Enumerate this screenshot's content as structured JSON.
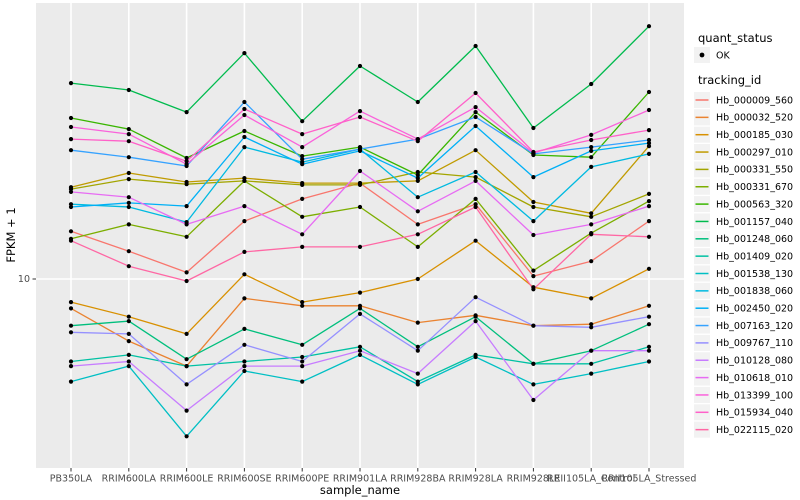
{
  "figure": {
    "panel_background": "#EBEBEB",
    "grid_color": "#FFFFFF",
    "tick_label_color": "#4D4D4D",
    "axis_title_color": "#000000",
    "legend_key_background": "#F2F2F2"
  },
  "chart_data": {
    "type": "line",
    "title": "",
    "xlabel": "sample_name",
    "ylabel": "FPKM + 1",
    "y_scale": "log10",
    "ylim_log10": [
      0.16,
      2.227
    ],
    "y_ticks": [
      {
        "value": 10,
        "label": "10"
      }
    ],
    "grid": "major",
    "point_color": "#000000",
    "categories": [
      "PB350LA",
      "RRIM600LA",
      "RRIM600LE",
      "RRIM600SE",
      "RRIM600PE",
      "RRIM901LA",
      "RRIM928BA",
      "RRIM928LA",
      "RRIM928LE",
      "RRII105LA_Control",
      "RRII105LA_Stressed"
    ],
    "legend": {
      "position": "right",
      "shape_title": "quant_status",
      "shape_items": [
        {
          "label": "OK",
          "marker": "point"
        }
      ],
      "color_title": "tracking_id"
    },
    "series": [
      {
        "name": "Hb_000009_560",
        "color": "#F8766D",
        "values": [
          16.3,
          13.3,
          10.7,
          18.1,
          22.7,
          26.7,
          17.5,
          21.5,
          10.3,
          12.0,
          18.1
        ]
      },
      {
        "name": "Hb_000032_520",
        "color": "#EA8331",
        "values": [
          7.4,
          5.3,
          4.1,
          8.2,
          7.6,
          7.6,
          6.4,
          6.9,
          6.2,
          6.3,
          7.6
        ]
      },
      {
        "name": "Hb_000185_030",
        "color": "#D89000",
        "values": [
          7.9,
          6.8,
          5.7,
          10.5,
          7.9,
          8.7,
          10.0,
          14.8,
          9.2,
          8.2,
          11.1
        ]
      },
      {
        "name": "Hb_000297_010",
        "color": "#C09B00",
        "values": [
          25.6,
          29.6,
          27.0,
          28.1,
          26.7,
          26.7,
          27.3,
          37.4,
          22.0,
          19.6,
          39.0
        ]
      },
      {
        "name": "Hb_000331_550",
        "color": "#A3A500",
        "values": [
          25.1,
          27.8,
          26.4,
          27.3,
          26.2,
          26.2,
          29.9,
          28.4,
          20.9,
          18.9,
          23.9
        ]
      },
      {
        "name": "Hb_000331_670",
        "color": "#7CAE00",
        "values": [
          15.1,
          17.5,
          15.4,
          27.3,
          18.9,
          20.9,
          13.9,
          22.7,
          10.9,
          16.0,
          22.2
        ]
      },
      {
        "name": "Hb_000563_320",
        "color": "#39B600",
        "values": [
          52.0,
          46.4,
          34.5,
          45.5,
          35.2,
          38.6,
          29.0,
          55.2,
          35.6,
          34.8,
          67.8
        ]
      },
      {
        "name": "Hb_001157_040",
        "color": "#00BB4E",
        "values": [
          74.3,
          69.2,
          55.2,
          101.0,
          50.3,
          88.5,
          61.2,
          108.6,
          46.9,
          73.6,
          133.0
        ]
      },
      {
        "name": "Hb_001248_060",
        "color": "#00BF7D",
        "values": [
          6.2,
          6.5,
          4.4,
          6.0,
          5.1,
          7.4,
          5.0,
          6.8,
          4.2,
          4.8,
          6.3
        ]
      },
      {
        "name": "Hb_001409_020",
        "color": "#00C1A3",
        "values": [
          4.3,
          4.6,
          4.1,
          4.3,
          4.5,
          5.0,
          3.5,
          4.6,
          4.2,
          4.2,
          5.0
        ]
      },
      {
        "name": "Hb_001538_130",
        "color": "#00BFC4",
        "values": [
          3.5,
          4.1,
          2.0,
          3.9,
          3.5,
          4.6,
          3.4,
          4.5,
          3.4,
          3.8,
          4.3
        ]
      },
      {
        "name": "Hb_001838_060",
        "color": "#00BAE0",
        "values": [
          21.5,
          20.9,
          17.9,
          38.6,
          33.1,
          37.8,
          23.1,
          29.9,
          18.1,
          31.5,
          36.0
        ]
      },
      {
        "name": "Hb_002450_020",
        "color": "#00B0F6",
        "values": [
          20.9,
          21.8,
          21.1,
          42.8,
          32.4,
          37.1,
          28.1,
          47.9,
          28.4,
          37.1,
          40.2
        ]
      },
      {
        "name": "Hb_007163_120",
        "color": "#35A2FF",
        "values": [
          37.4,
          34.8,
          31.8,
          61.2,
          34.1,
          37.8,
          41.9,
          52.5,
          36.0,
          38.6,
          41.5
        ]
      },
      {
        "name": "Hb_009767_110",
        "color": "#9590FF",
        "values": [
          5.8,
          5.7,
          3.4,
          5.1,
          4.3,
          7.0,
          4.8,
          8.3,
          6.2,
          6.1,
          6.8
        ]
      },
      {
        "name": "Hb_010128_080",
        "color": "#C77CFF",
        "values": [
          4.1,
          4.3,
          2.6,
          4.1,
          4.1,
          4.8,
          3.8,
          6.5,
          2.9,
          4.8,
          4.8
        ]
      },
      {
        "name": "Hb_010618_010",
        "color": "#E76BF3",
        "values": [
          24.4,
          23.1,
          17.5,
          21.1,
          15.8,
          30.2,
          20.0,
          27.3,
          15.7,
          17.5,
          21.1
        ]
      },
      {
        "name": "Hb_013399_100",
        "color": "#FA62DB",
        "values": [
          47.4,
          44.1,
          32.4,
          53.6,
          38.6,
          55.8,
          41.9,
          58.1,
          36.3,
          43.7,
          56.4
        ]
      },
      {
        "name": "Hb_015934_040",
        "color": "#FF61C9",
        "values": [
          41.9,
          41.0,
          33.4,
          57.0,
          44.1,
          52.5,
          41.0,
          67.1,
          36.7,
          41.5,
          45.9
        ]
      },
      {
        "name": "Hb_022115_020",
        "color": "#FF67A4",
        "values": [
          14.8,
          11.4,
          9.8,
          13.2,
          13.9,
          13.9,
          15.8,
          20.9,
          9.0,
          15.8,
          15.4
        ]
      }
    ]
  }
}
